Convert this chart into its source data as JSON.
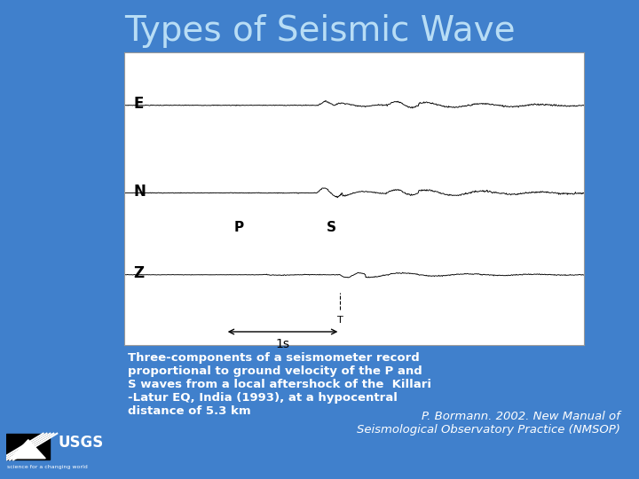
{
  "title": "Types of Seismic Wave",
  "title_color": "#b8ddf5",
  "title_fontsize": 28,
  "bg_color": "#4080cc",
  "panel_bg": "#ffffff",
  "label_E": "E",
  "label_N": "N",
  "label_Z": "Z",
  "label_P": "P",
  "label_S": "S",
  "label_1s": "1s",
  "caption_text": "Three-components of a seismometer record\nproportional to ground velocity of the P and\nS waves from a local aftershock of the  Killari\n-Latur EQ, India (1993), at a hypocentral\ndistance of 5.3 km",
  "credit_text": "P. Bormann. 2002. New Manual of\nSeismological Observatory Practice (NMSOP)",
  "caption_color": "#ffffff",
  "caption_fontsize": 9.5,
  "credit_fontsize": 9.5
}
